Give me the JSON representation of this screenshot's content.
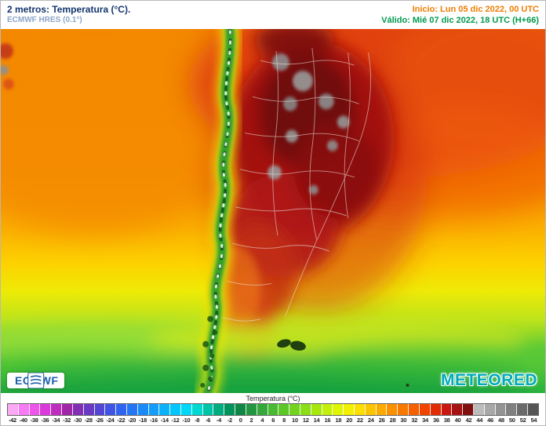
{
  "header": {
    "title": "2 metros: Temperatura (°C).",
    "subtitle": "ECMWF HRES (0.1°)",
    "init_label": "Inicio: Lun 05 dic 2022, 00 UTC",
    "valid_label": "Válido: Mié 07 dic 2022, 18 UTC (H+66)"
  },
  "map": {
    "logos": {
      "ecmwf": "ECMWF",
      "meteored": "METEORED"
    }
  },
  "colorbar": {
    "title": "Temperatura (°C)",
    "values": [
      -42,
      -40,
      -38,
      -36,
      -34,
      -32,
      -30,
      -28,
      -26,
      -24,
      -22,
      -20,
      -18,
      -16,
      -14,
      -12,
      -10,
      -8,
      -6,
      -4,
      -2,
      0,
      2,
      4,
      6,
      8,
      10,
      12,
      14,
      16,
      18,
      20,
      22,
      24,
      26,
      28,
      30,
      32,
      34,
      36,
      38,
      40,
      42,
      44,
      46,
      48,
      50,
      52,
      54
    ],
    "colors": [
      "#FBA8F5",
      "#F77BF2",
      "#EE55EC",
      "#DC39DC",
      "#BE2DBE",
      "#A026A8",
      "#8230B4",
      "#6A3AC4",
      "#5346D4",
      "#4054E4",
      "#3064F0",
      "#2476F6",
      "#1A8AF8",
      "#129EFA",
      "#0AB2FC",
      "#04C6FE",
      "#00D8F8",
      "#00D8D0",
      "#00C4A8",
      "#00AC80",
      "#00945C",
      "#108644",
      "#229640",
      "#34A83A",
      "#48BA32",
      "#5CC828",
      "#72D41E",
      "#8CDE16",
      "#A6E80E",
      "#C2F008",
      "#DEF604",
      "#F2F000",
      "#FCDE00",
      "#FCC400",
      "#FCAA00",
      "#FA9000",
      "#F87800",
      "#F66000",
      "#F04400",
      "#E22C04",
      "#C81810",
      "#A41212",
      "#7E1010",
      "#BCBCBC",
      "#A8A8A8",
      "#949494",
      "#808080",
      "#6A6A6A",
      "#565656"
    ]
  },
  "theme": {
    "title_color": "#12366e",
    "subtitle_color": "#8ba6c9",
    "init_color": "#f07d00",
    "valid_color": "#009a4e",
    "ecmwf_blue": "#1b5faa",
    "meteored_teal": "#00abb8"
  }
}
